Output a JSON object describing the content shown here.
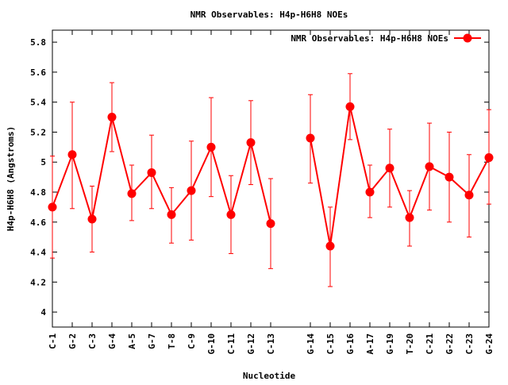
{
  "chart_data": {
    "type": "line",
    "title": "NMR Observables: H4p-H6H8 NOEs",
    "xlabel": "Nucleotide",
    "ylabel": "H4p-H6H8 (Angstroms)",
    "ylim": [
      3.9,
      5.88
    ],
    "yticks": [
      "4",
      "4.2",
      "4.4",
      "4.6",
      "4.8",
      "5",
      "5.2",
      "5.4",
      "5.6",
      "5.8"
    ],
    "legend_position": "top-right",
    "series": [
      {
        "name": "NMR Observables: H4p-H6H8 NOEs",
        "color": "#ff0000",
        "segments": [
          [
            {
              "label": "C-1",
              "value": 4.7,
              "err_low": 4.36,
              "err_high": 5.04
            },
            {
              "label": "G-2",
              "value": 5.05,
              "err_low": 4.69,
              "err_high": 5.4
            },
            {
              "label": "C-3",
              "value": 4.62,
              "err_low": 4.4,
              "err_high": 4.84
            },
            {
              "label": "G-4",
              "value": 5.3,
              "err_low": 5.07,
              "err_high": 5.53
            },
            {
              "label": "A-5",
              "value": 4.79,
              "err_low": 4.61,
              "err_high": 4.98
            },
            {
              "label": "G-7",
              "value": 4.93,
              "err_low": 4.69,
              "err_high": 5.18
            },
            {
              "label": "T-8",
              "value": 4.65,
              "err_low": 4.46,
              "err_high": 4.83
            },
            {
              "label": "C-9",
              "value": 4.81,
              "err_low": 4.48,
              "err_high": 5.14
            },
            {
              "label": "G-10",
              "value": 5.1,
              "err_low": 4.77,
              "err_high": 5.43
            },
            {
              "label": "C-11",
              "value": 4.65,
              "err_low": 4.39,
              "err_high": 4.91
            },
            {
              "label": "G-12",
              "value": 5.13,
              "err_low": 4.85,
              "err_high": 5.41
            },
            {
              "label": "C-13",
              "value": 4.59,
              "err_low": 4.29,
              "err_high": 4.89
            }
          ],
          [
            {
              "label": "G-14",
              "value": 5.16,
              "err_low": 4.86,
              "err_high": 5.45
            },
            {
              "label": "C-15",
              "value": 4.44,
              "err_low": 4.17,
              "err_high": 4.7
            },
            {
              "label": "G-16",
              "value": 5.37,
              "err_low": 5.15,
              "err_high": 5.59
            },
            {
              "label": "A-17",
              "value": 4.8,
              "err_low": 4.63,
              "err_high": 4.98
            },
            {
              "label": "G-19",
              "value": 4.96,
              "err_low": 4.7,
              "err_high": 5.22
            },
            {
              "label": "T-20",
              "value": 4.63,
              "err_low": 4.44,
              "err_high": 4.81
            },
            {
              "label": "C-21",
              "value": 4.97,
              "err_low": 4.68,
              "err_high": 5.26
            },
            {
              "label": "G-22",
              "value": 4.9,
              "err_low": 4.6,
              "err_high": 5.2
            },
            {
              "label": "C-23",
              "value": 4.78,
              "err_low": 4.5,
              "err_high": 5.05
            },
            {
              "label": "G-24",
              "value": 5.03,
              "err_low": 4.72,
              "err_high": 5.35
            }
          ]
        ]
      }
    ]
  }
}
